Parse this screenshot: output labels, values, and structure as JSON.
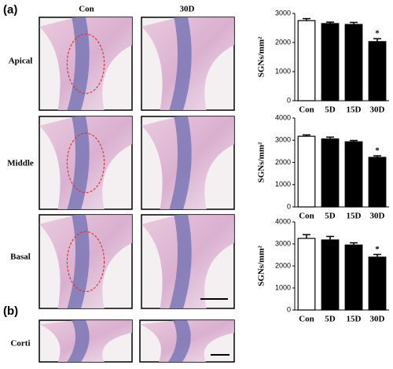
{
  "panel_labels": [
    "(a)",
    "(b)"
  ],
  "column_labels": [
    "Con",
    "30D"
  ],
  "row_labels": [
    "Apical",
    "Middle",
    "Basal",
    "Corti"
  ],
  "chart_data": [
    {
      "type": "bar",
      "ylabel": "SGNs/mm²",
      "categories": [
        "Con",
        "5D",
        "15D",
        "30D"
      ],
      "values": [
        2750,
        2650,
        2620,
        2030
      ],
      "errors": [
        70,
        50,
        70,
        100
      ],
      "colors": [
        "#ffffff",
        "#000000",
        "#000000",
        "#000000"
      ],
      "annotation": "*",
      "ylim": [
        0,
        3000
      ],
      "yticks": [
        0,
        1000,
        2000,
        3000
      ]
    },
    {
      "type": "bar",
      "ylabel": "SGNs/mm²",
      "categories": [
        "Con",
        "5D",
        "15D",
        "30D"
      ],
      "values": [
        3180,
        3060,
        2930,
        2230
      ],
      "errors": [
        60,
        80,
        60,
        70
      ],
      "colors": [
        "#ffffff",
        "#000000",
        "#000000",
        "#000000"
      ],
      "annotation": "*",
      "ylim": [
        0,
        4000
      ],
      "yticks": [
        0,
        1000,
        2000,
        3000,
        4000
      ]
    },
    {
      "type": "bar",
      "ylabel": "SGNs/mm²",
      "categories": [
        "Con",
        "5D",
        "15D",
        "30D"
      ],
      "values": [
        3250,
        3180,
        2950,
        2400
      ],
      "errors": [
        170,
        160,
        100,
        120
      ],
      "colors": [
        "#ffffff",
        "#000000",
        "#000000",
        "#000000"
      ],
      "annotation": "*",
      "ylim": [
        0,
        4000
      ],
      "yticks": [
        0,
        1000,
        2000,
        3000,
        4000
      ]
    }
  ]
}
